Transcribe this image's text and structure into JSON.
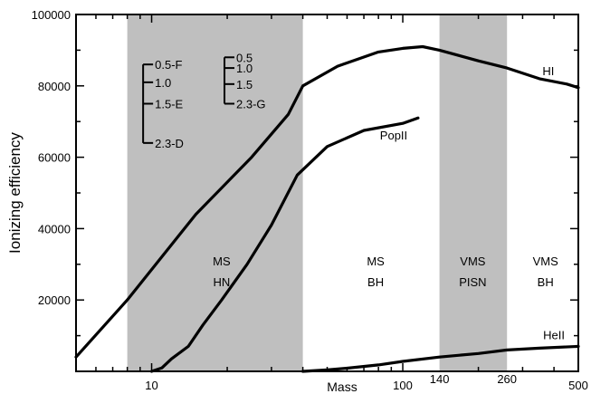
{
  "chart_data": {
    "type": "line",
    "xlabel": "Mass",
    "ylabel": "Ionizing efficiency",
    "xscale": "log",
    "xlim": [
      5,
      500
    ],
    "ylim": [
      0,
      100000
    ],
    "grid": false,
    "x_ticks": [
      {
        "value": 10,
        "label": "10"
      },
      {
        "value": 100,
        "label": "100"
      },
      {
        "value": 140,
        "label": "140"
      },
      {
        "value": 260,
        "label": "260"
      },
      {
        "value": 500,
        "label": "500"
      }
    ],
    "y_ticks": [
      {
        "value": 20000,
        "label": "20000"
      },
      {
        "value": 40000,
        "label": "40000"
      },
      {
        "value": 60000,
        "label": "60000"
      },
      {
        "value": 80000,
        "label": "80000"
      },
      {
        "value": 100000,
        "label": "100000"
      }
    ],
    "shaded_regions": [
      {
        "x0": 8,
        "x1": 40
      },
      {
        "x0": 140,
        "x1": 260
      }
    ],
    "region_labels": [
      {
        "x": 19,
        "lines": [
          "MS",
          "HN"
        ]
      },
      {
        "x": 78,
        "lines": [
          "MS",
          "BH"
        ]
      },
      {
        "x": 190,
        "lines": [
          "VMS",
          "PISN"
        ]
      },
      {
        "x": 370,
        "lines": [
          "VMS",
          "BH"
        ]
      }
    ],
    "series": [
      {
        "name": "HI",
        "label_at": {
          "x": 380,
          "y": 83000
        },
        "x": [
          5,
          8,
          15,
          25,
          35,
          40,
          55,
          80,
          100,
          120,
          140,
          200,
          260,
          350,
          450,
          500
        ],
        "y": [
          4000,
          20000,
          44000,
          60000,
          72000,
          80000,
          85500,
          89500,
          90500,
          91000,
          90000,
          87000,
          85000,
          82000,
          80500,
          79500
        ]
      },
      {
        "name": "PopII",
        "label_at": {
          "x": 92,
          "y": 65000
        },
        "x": [
          10,
          11,
          12,
          14,
          16,
          19,
          24,
          30,
          38,
          50,
          70,
          100,
          115
        ],
        "y": [
          0,
          1000,
          3500,
          7000,
          13000,
          20000,
          30000,
          41000,
          55000,
          63000,
          67500,
          69500,
          71000
        ]
      },
      {
        "name": "HeII",
        "label_at": {
          "x": 400,
          "y": 9000
        },
        "x": [
          40,
          50,
          60,
          80,
          100,
          140,
          200,
          260,
          350,
          500
        ],
        "y": [
          0,
          400,
          900,
          1800,
          2800,
          4000,
          5000,
          6000,
          6500,
          7000
        ]
      }
    ],
    "annotations": [
      {
        "id": "left-key",
        "bracket_x": 9.25,
        "y_top": 86000,
        "y_bottom": 64000,
        "ticks": [
          {
            "y": 86000,
            "label": "0.5-F"
          },
          {
            "y": 81000,
            "label": "1.0"
          },
          {
            "y": 75000,
            "label": "1.5-E"
          },
          {
            "y": 64000,
            "label": "2.3-D"
          }
        ]
      },
      {
        "id": "right-key",
        "bracket_x": 19.5,
        "y_top": 88000,
        "y_bottom": 75000,
        "ticks": [
          {
            "y": 88000,
            "label": "0.5"
          },
          {
            "y": 85000,
            "label": "1.0"
          },
          {
            "y": 80500,
            "label": "1.5"
          },
          {
            "y": 75000,
            "label": "2.3-G"
          }
        ]
      }
    ],
    "colors": {
      "shade": "#bfbfbf",
      "line": "#000000",
      "background": "#ffffff"
    }
  }
}
